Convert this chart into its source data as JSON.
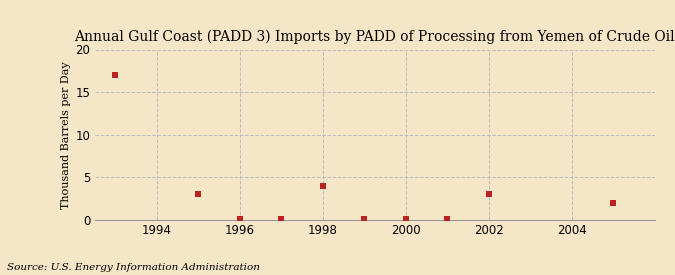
{
  "title": "Annual Gulf Coast (PADD 3) Imports by PADD of Processing from Yemen of Crude Oil",
  "ylabel": "Thousand Barrels per Day",
  "source": "Source: U.S. Energy Information Administration",
  "background_color": "#f5e6c8",
  "x_data": [
    1993,
    1995,
    1996,
    1997,
    1998,
    1999,
    2000,
    2001,
    2002,
    2005
  ],
  "y_data": [
    17,
    3,
    0.1,
    0.1,
    4,
    0.1,
    0.1,
    0.1,
    3,
    2
  ],
  "marker_color": "#bb2222",
  "marker_size": 18,
  "xlim": [
    1992.5,
    2006
  ],
  "ylim": [
    0,
    20
  ],
  "yticks": [
    0,
    5,
    10,
    15,
    20
  ],
  "xticks": [
    1994,
    1996,
    1998,
    2000,
    2002,
    2004
  ],
  "grid_color": "#bbbbbb",
  "title_fontsize": 10,
  "label_fontsize": 8,
  "tick_fontsize": 8.5,
  "source_fontsize": 7.5
}
